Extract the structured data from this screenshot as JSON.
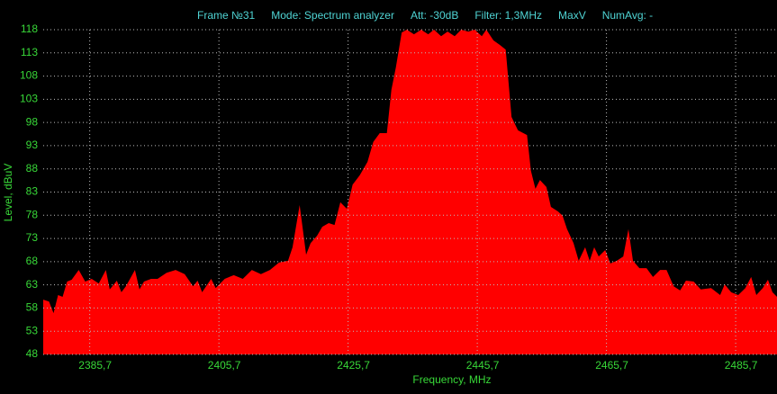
{
  "chart_data": {
    "type": "area",
    "header": [
      "Frame №31",
      "Mode: Spectrum analyzer",
      "Att: -30dB",
      "Filter: 1,3MHz",
      "MaxV",
      "NumAvg: -"
    ],
    "x_label": "Frequency, MHz",
    "y_label": "Level, dBuV",
    "xlim": [
      2378.5,
      2492.1
    ],
    "ylim": [
      48,
      118
    ],
    "xticks": [
      {
        "value": 2385.7,
        "label": "2385,7"
      },
      {
        "value": 2405.7,
        "label": "2405,7"
      },
      {
        "value": 2425.7,
        "label": "2425,7"
      },
      {
        "value": 2445.7,
        "label": "2445,7"
      },
      {
        "value": 2465.7,
        "label": "2465,7"
      },
      {
        "value": 2485.7,
        "label": "2485,7"
      }
    ],
    "yticks": [
      48,
      53,
      58,
      63,
      68,
      73,
      78,
      83,
      88,
      93,
      98,
      103,
      108,
      113,
      118
    ],
    "grid": true,
    "background": "#000000",
    "x": [
      2378.5,
      2379.4,
      2380.1,
      2380.8,
      2381.5,
      2382.2,
      2382.9,
      2384.0,
      2385.0,
      2386.0,
      2387.1,
      2388.2,
      2388.8,
      2389.9,
      2390.6,
      2391.3,
      2392.7,
      2393.4,
      2394.1,
      2395.2,
      2396.2,
      2397.6,
      2399.0,
      2400.4,
      2401.7,
      2402.4,
      2403.1,
      2404.5,
      2405.2,
      2406.6,
      2408.0,
      2409.4,
      2410.8,
      2412.2,
      2413.6,
      2415.0,
      2416.4,
      2417.1,
      2418.2,
      2419.2,
      2419.9,
      2420.9,
      2421.7,
      2422.7,
      2423.6,
      2424.5,
      2425.5,
      2426.4,
      2427.5,
      2428.7,
      2429.6,
      2430.6,
      2431.7,
      2432.4,
      2433.1,
      2434.0,
      2434.8,
      2435.9,
      2437.0,
      2438.1,
      2439.0,
      2440.1,
      2441.1,
      2442.2,
      2443.2,
      2444.3,
      2445.3,
      2446.4,
      2447.1,
      2448.2,
      2449.2,
      2450.1,
      2451.0,
      2452.0,
      2453.4,
      2454.0,
      2454.7,
      2455.4,
      2456.4,
      2457.1,
      2458.2,
      2458.9,
      2459.6,
      2460.6,
      2461.4,
      2462.4,
      2463.1,
      2463.8,
      2464.5,
      2465.5,
      2466.3,
      2467.3,
      2468.3,
      2469.1,
      2469.8,
      2470.8,
      2471.9,
      2472.9,
      2474.0,
      2475.0,
      2476.1,
      2477.1,
      2478.0,
      2479.2,
      2480.3,
      2481.9,
      2483.3,
      2484.0,
      2485.0,
      2486.1,
      2487.2,
      2488.1,
      2488.9,
      2489.9,
      2490.7,
      2491.4,
      2492.1
    ],
    "series": [
      {
        "color": "#ff0000",
        "values": [
          59.8,
          59.4,
          56.9,
          60.8,
          60.4,
          63.7,
          64.1,
          66.2,
          63.7,
          64.3,
          63.3,
          66.2,
          62.0,
          63.9,
          61.4,
          62.7,
          66.2,
          62.0,
          63.7,
          64.3,
          64.3,
          65.6,
          66.2,
          65.3,
          62.7,
          63.9,
          61.4,
          64.3,
          62.3,
          64.3,
          65.1,
          64.3,
          66.2,
          65.3,
          66.2,
          67.8,
          68.2,
          71.1,
          80.2,
          69.5,
          72.0,
          73.6,
          75.5,
          76.3,
          75.9,
          80.8,
          79.4,
          84.6,
          86.6,
          89.5,
          93.8,
          95.7,
          95.7,
          105.0,
          109.9,
          117.4,
          118.0,
          117.0,
          118.0,
          117.0,
          118.0,
          116.6,
          117.6,
          116.6,
          118.0,
          117.6,
          118.0,
          116.6,
          118.0,
          115.7,
          114.7,
          113.7,
          99.2,
          96.3,
          95.3,
          87.6,
          83.7,
          85.6,
          84.1,
          79.8,
          78.8,
          77.9,
          75.0,
          72.0,
          68.2,
          71.1,
          68.2,
          71.1,
          69.1,
          70.5,
          67.6,
          68.2,
          69.1,
          75.0,
          68.2,
          66.6,
          66.6,
          64.7,
          66.2,
          66.2,
          62.7,
          61.8,
          63.9,
          63.7,
          62.0,
          62.3,
          60.8,
          63.1,
          61.4,
          60.8,
          62.3,
          64.7,
          60.8,
          62.3,
          64.1,
          61.4,
          60.4
        ]
      }
    ]
  }
}
